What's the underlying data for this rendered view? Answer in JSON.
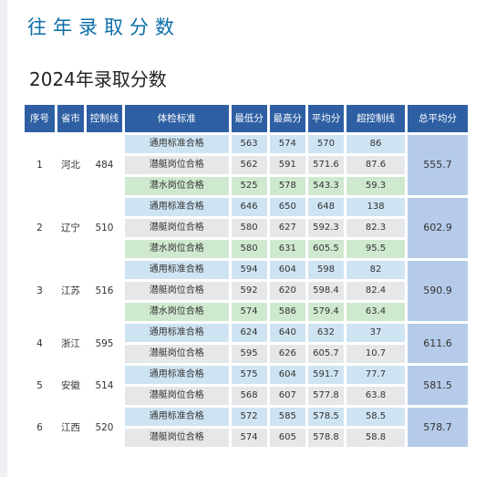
{
  "page_title": "往年录取分数",
  "subtitle": "2024年录取分数",
  "headers": [
    "序号",
    "省市",
    "控制线",
    "体检标准",
    "最低分",
    "最高分",
    "平均分",
    "超控制线",
    "总平均分"
  ],
  "groups": [
    {
      "index": "1",
      "province": "河北",
      "control_line": "484",
      "total_avg": "555.7",
      "rows": [
        {
          "standard": "通用标准合格",
          "min": "563",
          "max": "574",
          "avg": "570",
          "over": "86",
          "tone": "blue"
        },
        {
          "standard": "潜艇岗位合格",
          "min": "562",
          "max": "591",
          "avg": "571.6",
          "over": "87.6",
          "tone": "gray"
        },
        {
          "standard": "潜水岗位合格",
          "min": "525",
          "max": "578",
          "avg": "543.3",
          "over": "59.3",
          "tone": "green"
        }
      ]
    },
    {
      "index": "2",
      "province": "辽宁",
      "control_line": "510",
      "total_avg": "602.9",
      "rows": [
        {
          "standard": "通用标准合格",
          "min": "646",
          "max": "650",
          "avg": "648",
          "over": "138",
          "tone": "blue"
        },
        {
          "standard": "潜艇岗位合格",
          "min": "580",
          "max": "627",
          "avg": "592.3",
          "over": "82.3",
          "tone": "gray"
        },
        {
          "standard": "潜水岗位合格",
          "min": "580",
          "max": "631",
          "avg": "605.5",
          "over": "95.5",
          "tone": "green"
        }
      ]
    },
    {
      "index": "3",
      "province": "江苏",
      "control_line": "516",
      "total_avg": "590.9",
      "rows": [
        {
          "standard": "通用标准合格",
          "min": "594",
          "max": "604",
          "avg": "598",
          "over": "82",
          "tone": "blue"
        },
        {
          "standard": "潜艇岗位合格",
          "min": "592",
          "max": "620",
          "avg": "598.4",
          "over": "82.4",
          "tone": "gray"
        },
        {
          "standard": "潜水岗位合格",
          "min": "574",
          "max": "586",
          "avg": "579.4",
          "over": "63.4",
          "tone": "green"
        }
      ]
    },
    {
      "index": "4",
      "province": "浙江",
      "control_line": "595",
      "total_avg": "611.6",
      "rows": [
        {
          "standard": "通用标准合格",
          "min": "624",
          "max": "640",
          "avg": "632",
          "over": "37",
          "tone": "blue"
        },
        {
          "standard": "潜艇岗位合格",
          "min": "595",
          "max": "626",
          "avg": "605.7",
          "over": "10.7",
          "tone": "gray"
        }
      ]
    },
    {
      "index": "5",
      "province": "安徽",
      "control_line": "514",
      "total_avg": "581.5",
      "rows": [
        {
          "standard": "通用标准合格",
          "min": "575",
          "max": "604",
          "avg": "591.7",
          "over": "77.7",
          "tone": "blue"
        },
        {
          "standard": "潜艇岗位合格",
          "min": "568",
          "max": "607",
          "avg": "577.8",
          "over": "63.8",
          "tone": "gray"
        }
      ]
    },
    {
      "index": "6",
      "province": "江西",
      "control_line": "520",
      "total_avg": "578.7",
      "rows": [
        {
          "standard": "通用标准合格",
          "min": "572",
          "max": "585",
          "avg": "578.5",
          "over": "58.5",
          "tone": "blue"
        },
        {
          "standard": "潜艇岗位合格",
          "min": "574",
          "max": "605",
          "avg": "578.8",
          "over": "58.8",
          "tone": "gray"
        }
      ]
    }
  ]
}
